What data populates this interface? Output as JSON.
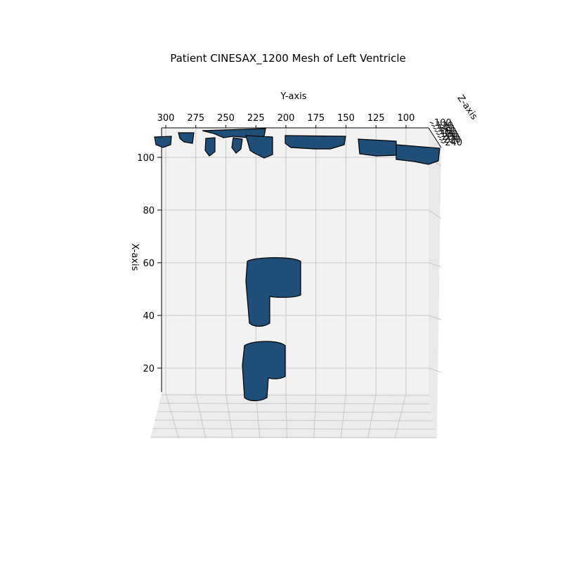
{
  "chart_data": {
    "type": "3d-surface",
    "title": "Patient CINESAX_1200 Mesh of Left Ventricle",
    "xlabel": "X-axis",
    "ylabel": "Y-axis",
    "zlabel": "Z-axis",
    "x_ticks": [
      20,
      40,
      60,
      80,
      100
    ],
    "y_ticks": [
      300,
      275,
      250,
      225,
      200,
      175,
      150,
      125,
      100
    ],
    "z_ticks": [
      100,
      120,
      140,
      160,
      180,
      200,
      220,
      240
    ],
    "grid": true,
    "mesh_color": "#1f4e79",
    "edge_color": "#000000",
    "surfaces": [
      {
        "y_range": [
          236,
          188
        ],
        "x_range": [
          47,
          64
        ]
      },
      {
        "y_range": [
          240,
          205
        ],
        "x_range": [
          10,
          30
        ]
      },
      {
        "y_range": [
          300,
          100
        ],
        "x_range": [
          100,
          110
        ]
      }
    ]
  }
}
